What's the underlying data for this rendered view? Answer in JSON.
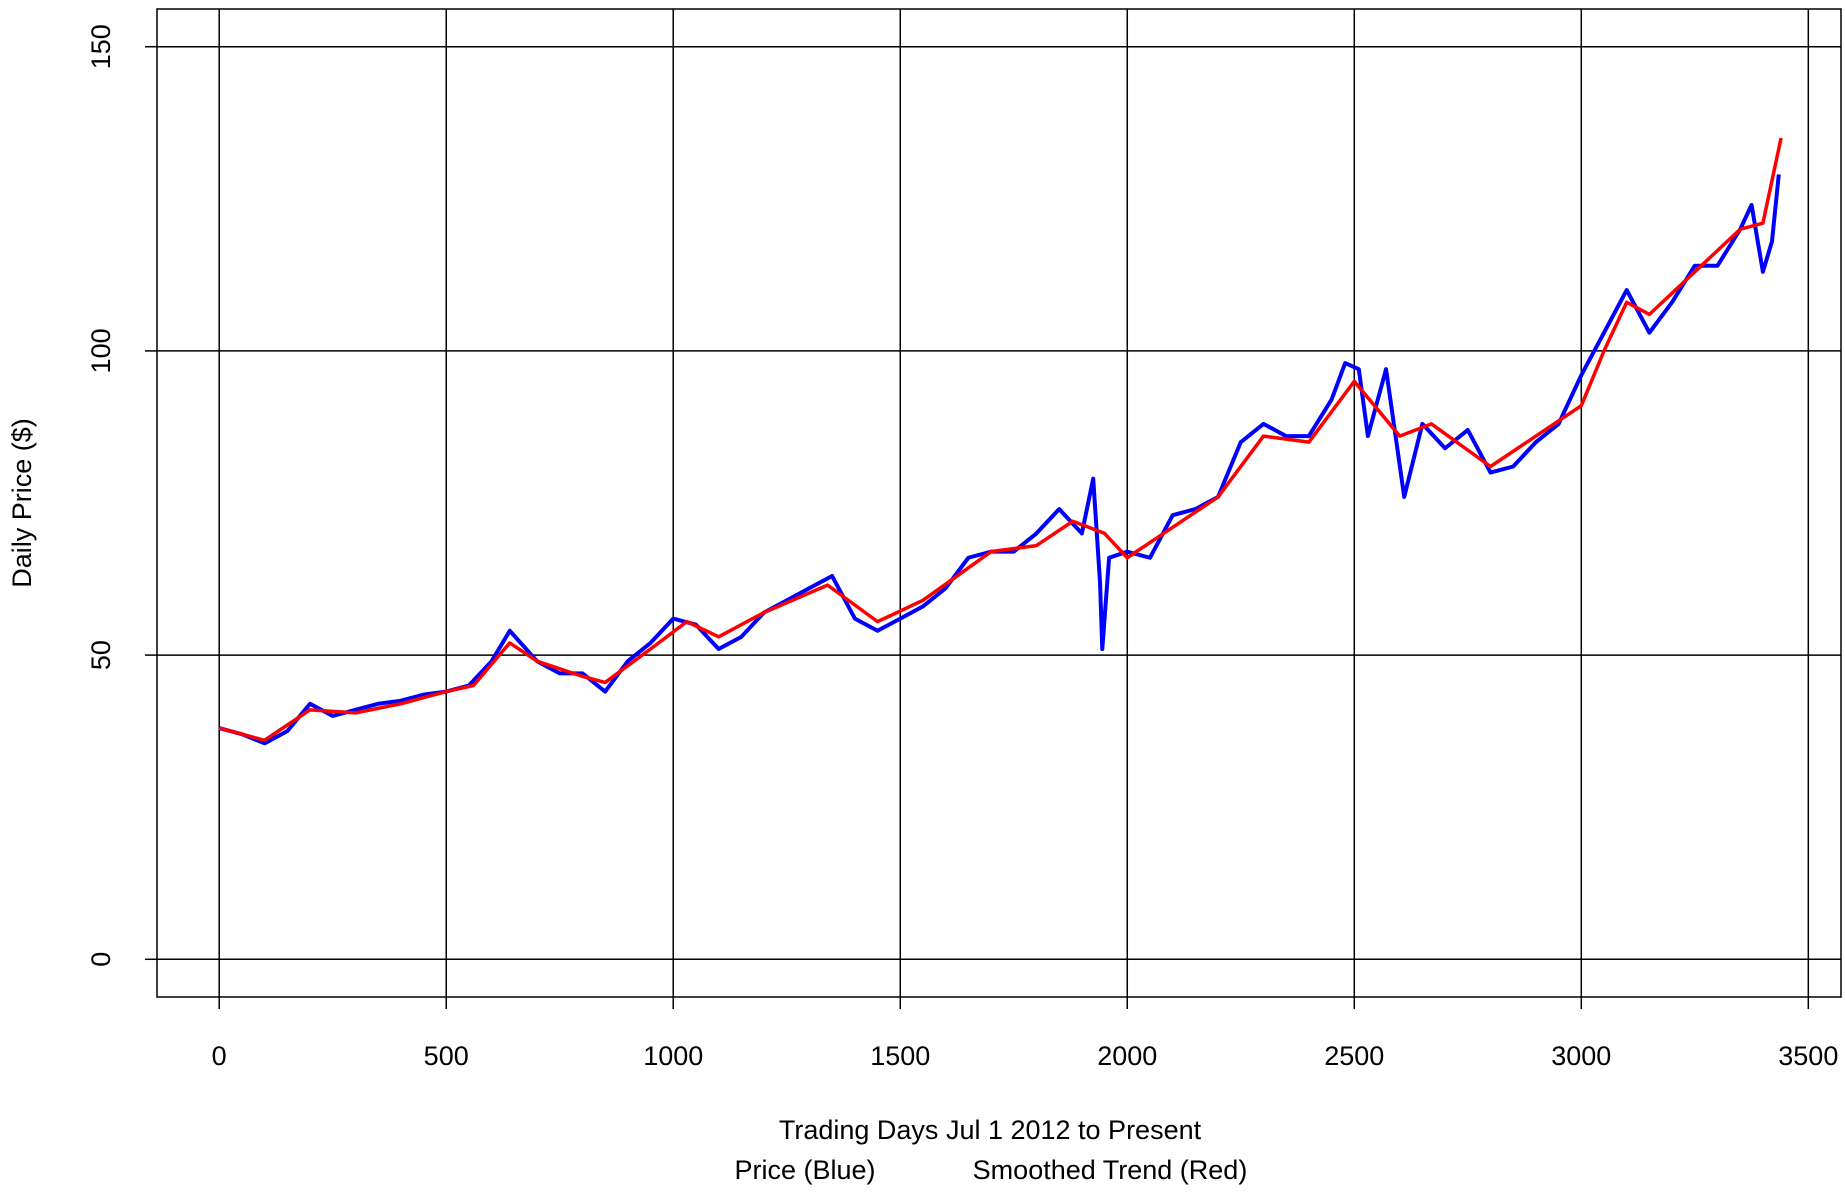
{
  "chart_data": {
    "type": "line",
    "xlabel": "Trading Days Jul 1 2012 to Present",
    "ylabel": "Daily Price ($)",
    "xlim": [
      -137,
      3572
    ],
    "ylim": [
      -6.2,
      156.2
    ],
    "xticks": [
      0,
      500,
      1000,
      1500,
      2000,
      2500,
      3000,
      3500
    ],
    "yticks": [
      0,
      50,
      100,
      150
    ],
    "grid": true,
    "series": [
      {
        "name": "Price (Blue)",
        "color": "#0000ff",
        "x": [
          0,
          50,
          100,
          150,
          200,
          250,
          300,
          350,
          400,
          450,
          500,
          550,
          600,
          640,
          700,
          750,
          800,
          850,
          900,
          950,
          1000,
          1050,
          1100,
          1150,
          1200,
          1250,
          1300,
          1350,
          1400,
          1450,
          1500,
          1550,
          1600,
          1650,
          1700,
          1750,
          1800,
          1850,
          1900,
          1925,
          1940,
          1945,
          1960,
          2000,
          2050,
          2100,
          2150,
          2200,
          2250,
          2300,
          2350,
          2400,
          2450,
          2480,
          2510,
          2530,
          2570,
          2610,
          2650,
          2700,
          2750,
          2800,
          2850,
          2900,
          2950,
          3000,
          3050,
          3100,
          3150,
          3200,
          3250,
          3300,
          3350,
          3375,
          3400,
          3420,
          3435
        ],
        "values": [
          38,
          37,
          35.5,
          37.5,
          42,
          40,
          41,
          42,
          42.5,
          43.5,
          44,
          45,
          49,
          54,
          49,
          47,
          47,
          44,
          49,
          52,
          56,
          55,
          51,
          53,
          57,
          59,
          61,
          63,
          56,
          54,
          56,
          58,
          61,
          66,
          67,
          67,
          70,
          74,
          70,
          79,
          62,
          51,
          66,
          67,
          66,
          73,
          74,
          76,
          85,
          88,
          86,
          86,
          92,
          98,
          97,
          86,
          97,
          76,
          88,
          84,
          87,
          80,
          81,
          85,
          88,
          96,
          103,
          110,
          103,
          108,
          114,
          114,
          120,
          124,
          113,
          118,
          129
        ]
      },
      {
        "name": "Smoothed Trend (Red)",
        "color": "#ff0000",
        "x": [
          0,
          100,
          200,
          300,
          400,
          500,
          560,
          640,
          700,
          800,
          850,
          950,
          1030,
          1100,
          1200,
          1340,
          1450,
          1550,
          1700,
          1800,
          1880,
          1950,
          2000,
          2100,
          2200,
          2300,
          2400,
          2500,
          2600,
          2670,
          2800,
          2900,
          3000,
          3050,
          3100,
          3150,
          3250,
          3350,
          3400,
          3440
        ],
        "values": [
          38,
          36,
          41,
          40.5,
          42,
          44,
          45,
          52,
          49,
          46.5,
          45.5,
          51,
          55.5,
          53,
          57,
          61.5,
          55.5,
          59,
          67,
          68,
          72,
          70,
          66,
          71,
          76,
          86,
          85,
          95,
          86,
          88,
          81,
          86,
          91,
          100,
          108,
          106,
          113,
          120,
          121,
          135
        ]
      }
    ]
  }
}
